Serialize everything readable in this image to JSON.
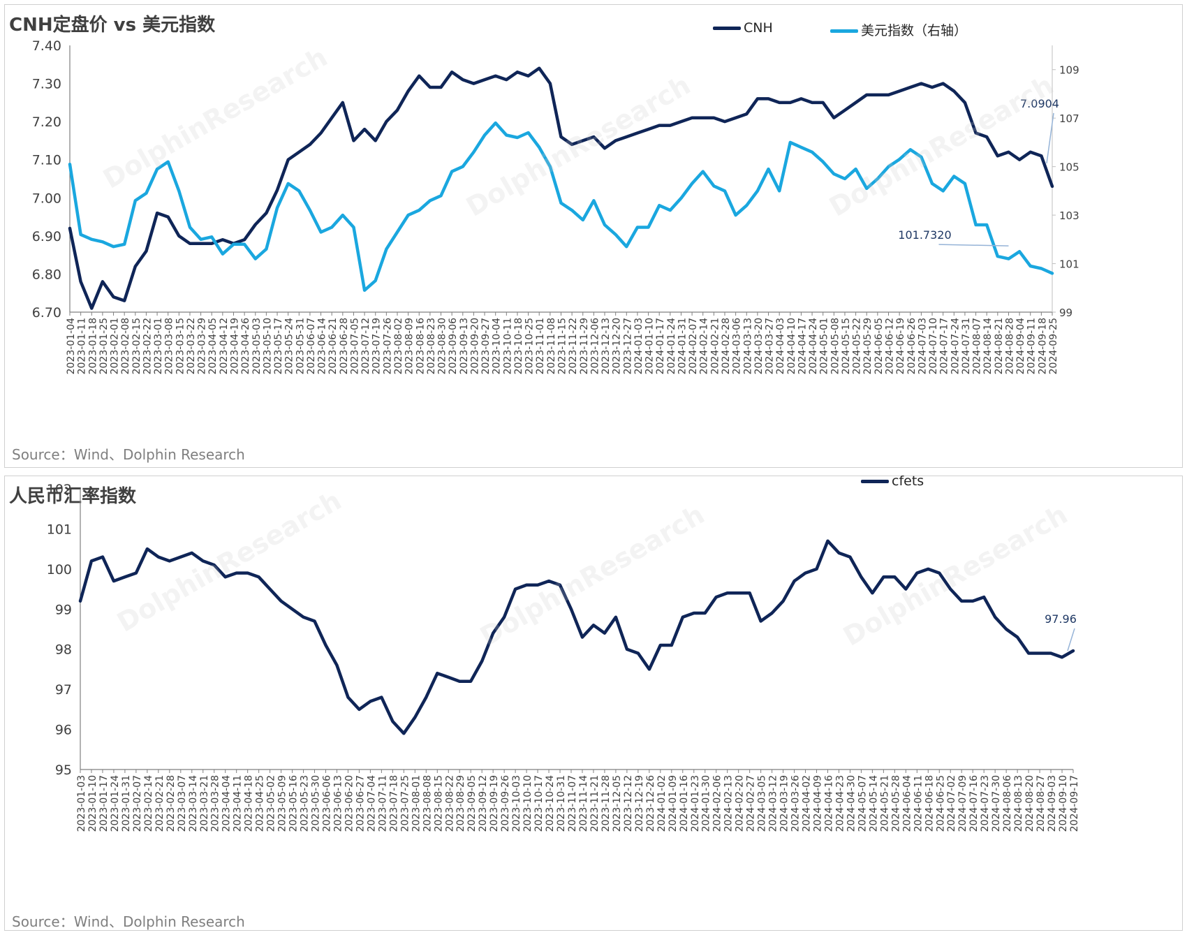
{
  "source": "Source：Wind、Dolphin Research",
  "colors": {
    "cnh": "#0f2557",
    "dxy": "#1aa7df",
    "cfets": "#0f2557",
    "axis": "#595959",
    "callout": "#4f81bd"
  },
  "chart_data": [
    {
      "type": "line",
      "title": "CNH定盘价 vs 美元指数",
      "ylim_left": [
        6.7,
        7.4
      ],
      "ylim_right": [
        99,
        110
      ],
      "y_ticks_left": [
        "7.40",
        "7.30",
        "7.20",
        "7.10",
        "7.00",
        "6.90",
        "6.80",
        "6.70"
      ],
      "y_ticks_right": [
        "109",
        "107",
        "105",
        "103",
        "101",
        "99"
      ],
      "x_ticks": [
        "2023-01-04",
        "2023-01-11",
        "2023-01-18",
        "2023-01-25",
        "2023-02-01",
        "2023-02-08",
        "2023-02-15",
        "2023-02-22",
        "2023-03-01",
        "2023-03-08",
        "2023-03-15",
        "2023-03-22",
        "2023-03-29",
        "2023-04-05",
        "2023-04-12",
        "2023-04-19",
        "2023-04-26",
        "2023-05-03",
        "2023-05-10",
        "2023-05-17",
        "2023-05-24",
        "2023-05-31",
        "2023-06-07",
        "2023-06-14",
        "2023-06-21",
        "2023-06-28",
        "2023-07-05",
        "2023-07-12",
        "2023-07-19",
        "2023-07-26",
        "2023-08-02",
        "2023-08-09",
        "2023-08-16",
        "2023-08-23",
        "2023-08-30",
        "2023-09-06",
        "2023-09-13",
        "2023-09-20",
        "2023-09-27",
        "2023-10-04",
        "2023-10-11",
        "2023-10-18",
        "2023-10-25",
        "2023-11-01",
        "2023-11-08",
        "2023-11-15",
        "2023-11-22",
        "2023-11-29",
        "2023-12-06",
        "2023-12-13",
        "2023-12-20",
        "2023-12-27",
        "2024-01-03",
        "2024-01-10",
        "2024-01-17",
        "2024-01-24",
        "2024-01-31",
        "2024-02-07",
        "2024-02-14",
        "2024-02-21",
        "2024-02-28",
        "2024-03-06",
        "2024-03-13",
        "2024-03-20",
        "2024-03-27",
        "2024-04-03",
        "2024-04-10",
        "2024-04-17",
        "2024-04-24",
        "2024-05-01",
        "2024-05-08",
        "2024-05-15",
        "2024-05-22",
        "2024-05-29",
        "2024-06-05",
        "2024-06-12",
        "2024-06-19",
        "2024-06-26",
        "2024-07-03",
        "2024-07-10",
        "2024-07-17",
        "2024-07-24",
        "2024-07-31",
        "2024-08-07",
        "2024-08-14",
        "2024-08-21",
        "2024-08-28",
        "2024-09-04",
        "2024-09-11",
        "2024-09-18",
        "2024-09-25"
      ],
      "series": [
        {
          "name": "CNH",
          "axis": "left",
          "values": [
            6.92,
            6.78,
            6.71,
            6.78,
            6.74,
            6.73,
            6.82,
            6.86,
            6.96,
            6.95,
            6.9,
            6.88,
            6.88,
            6.88,
            6.89,
            6.88,
            6.89,
            6.93,
            6.96,
            7.02,
            7.1,
            7.12,
            7.14,
            7.17,
            7.21,
            7.25,
            7.15,
            7.18,
            7.15,
            7.2,
            7.23,
            7.28,
            7.32,
            7.29,
            7.29,
            7.33,
            7.31,
            7.3,
            7.31,
            7.32,
            7.31,
            7.33,
            7.32,
            7.34,
            7.3,
            7.16,
            7.14,
            7.15,
            7.16,
            7.13,
            7.15,
            7.16,
            7.17,
            7.18,
            7.19,
            7.19,
            7.2,
            7.21,
            7.21,
            7.21,
            7.2,
            7.21,
            7.22,
            7.26,
            7.26,
            7.25,
            7.25,
            7.26,
            7.25,
            7.25,
            7.21,
            7.23,
            7.25,
            7.27,
            7.27,
            7.27,
            7.28,
            7.29,
            7.3,
            7.29,
            7.3,
            7.28,
            7.25,
            7.17,
            7.16,
            7.11,
            7.12,
            7.1,
            7.12,
            7.11,
            7.03
          ]
        },
        {
          "name": "美元指数（右轴）",
          "axis": "right",
          "values": [
            105.1,
            102.2,
            102.0,
            101.9,
            101.7,
            101.8,
            103.6,
            103.9,
            104.9,
            105.2,
            104.0,
            102.5,
            102.0,
            102.1,
            101.4,
            101.8,
            101.8,
            101.2,
            101.6,
            103.3,
            104.3,
            104.0,
            103.2,
            102.3,
            102.5,
            103.0,
            102.5,
            99.9,
            100.3,
            101.6,
            102.3,
            103.0,
            103.2,
            103.6,
            103.8,
            104.8,
            105.0,
            105.6,
            106.3,
            106.8,
            106.3,
            106.2,
            106.4,
            105.8,
            105.0,
            103.5,
            103.2,
            102.8,
            103.6,
            102.6,
            102.2,
            101.7,
            102.5,
            102.5,
            103.4,
            103.2,
            103.7,
            104.3,
            104.8,
            104.2,
            104.0,
            103.0,
            103.4,
            104.0,
            104.9,
            104.0,
            106.0,
            105.8,
            105.6,
            105.2,
            104.7,
            104.5,
            104.9,
            104.1,
            104.5,
            105.0,
            105.3,
            105.7,
            105.4,
            104.3,
            104.0,
            104.6,
            104.3,
            102.6,
            102.6,
            101.3,
            101.2,
            101.5,
            100.9,
            100.8,
            100.6
          ]
        }
      ],
      "annotations": [
        {
          "text": "7.0904",
          "series": "CNH",
          "x": "2024-08-30",
          "y": 7.0904
        },
        {
          "text": "101.7320",
          "series": "美元指数（右轴）",
          "x": "2024-08-28",
          "y": 101.732
        }
      ],
      "grid": false,
      "legend_position": "top-right"
    },
    {
      "type": "line",
      "title": "人民币汇率指数",
      "ylim": [
        95,
        102
      ],
      "y_ticks": [
        "102",
        "101",
        "100",
        "99",
        "98",
        "97",
        "96",
        "95"
      ],
      "x_ticks": [
        "2023-01-03",
        "2023-01-10",
        "2023-01-17",
        "2023-01-24",
        "2023-01-31",
        "2023-02-07",
        "2023-02-14",
        "2023-02-21",
        "2023-02-28",
        "2023-03-07",
        "2023-03-14",
        "2023-03-21",
        "2023-03-28",
        "2023-04-04",
        "2023-04-11",
        "2023-04-18",
        "2023-04-25",
        "2023-05-02",
        "2023-05-09",
        "2023-05-16",
        "2023-05-23",
        "2023-05-30",
        "2023-06-06",
        "2023-06-13",
        "2023-06-20",
        "2023-06-27",
        "2023-07-04",
        "2023-07-11",
        "2023-07-18",
        "2023-07-25",
        "2023-08-01",
        "2023-08-08",
        "2023-08-15",
        "2023-08-22",
        "2023-08-29",
        "2023-09-05",
        "2023-09-12",
        "2023-09-19",
        "2023-09-26",
        "2023-10-03",
        "2023-10-10",
        "2023-10-17",
        "2023-10-24",
        "2023-10-31",
        "2023-11-07",
        "2023-11-14",
        "2023-11-21",
        "2023-11-28",
        "2023-12-05",
        "2023-12-12",
        "2023-12-19",
        "2023-12-26",
        "2024-01-02",
        "2024-01-09",
        "2024-01-16",
        "2024-01-23",
        "2024-01-30",
        "2024-02-06",
        "2024-02-13",
        "2024-02-20",
        "2024-02-27",
        "2024-03-05",
        "2024-03-12",
        "2024-03-19",
        "2024-03-26",
        "2024-04-02",
        "2024-04-09",
        "2024-04-16",
        "2024-04-23",
        "2024-04-30",
        "2024-05-07",
        "2024-05-14",
        "2024-05-21",
        "2024-05-28",
        "2024-06-04",
        "2024-06-11",
        "2024-06-18",
        "2024-06-25",
        "2024-07-02",
        "2024-07-09",
        "2024-07-16",
        "2024-07-23",
        "2024-07-30",
        "2024-08-06",
        "2024-08-13",
        "2024-08-20",
        "2024-08-27",
        "2024-09-03",
        "2024-09-10",
        "2024-09-17"
      ],
      "series": [
        {
          "name": "cfets",
          "values": [
            99.2,
            100.2,
            100.3,
            99.7,
            99.8,
            99.9,
            100.5,
            100.3,
            100.2,
            100.3,
            100.4,
            100.2,
            100.1,
            99.8,
            99.9,
            99.9,
            99.8,
            99.5,
            99.2,
            99.0,
            98.8,
            98.7,
            98.1,
            97.6,
            96.8,
            96.5,
            96.7,
            96.8,
            96.2,
            95.9,
            96.3,
            96.8,
            97.4,
            97.3,
            97.2,
            97.2,
            97.7,
            98.4,
            98.8,
            99.5,
            99.6,
            99.6,
            99.7,
            99.6,
            99.0,
            98.3,
            98.6,
            98.4,
            98.8,
            98.0,
            97.9,
            97.5,
            98.1,
            98.1,
            98.8,
            98.9,
            98.9,
            99.3,
            99.4,
            99.4,
            99.4,
            98.7,
            98.9,
            99.2,
            99.7,
            99.9,
            100.0,
            100.7,
            100.4,
            100.3,
            99.8,
            99.4,
            99.8,
            99.8,
            99.5,
            99.9,
            100.0,
            99.9,
            99.5,
            99.2,
            99.2,
            99.3,
            98.8,
            98.5,
            98.3,
            97.9,
            97.9,
            97.9,
            97.8,
            97.96
          ]
        }
      ],
      "annotations": [
        {
          "text": "97.96",
          "series": "cfets",
          "x": "2024-09-20",
          "y": 97.96
        }
      ],
      "grid": false,
      "legend_position": "top-right"
    }
  ]
}
